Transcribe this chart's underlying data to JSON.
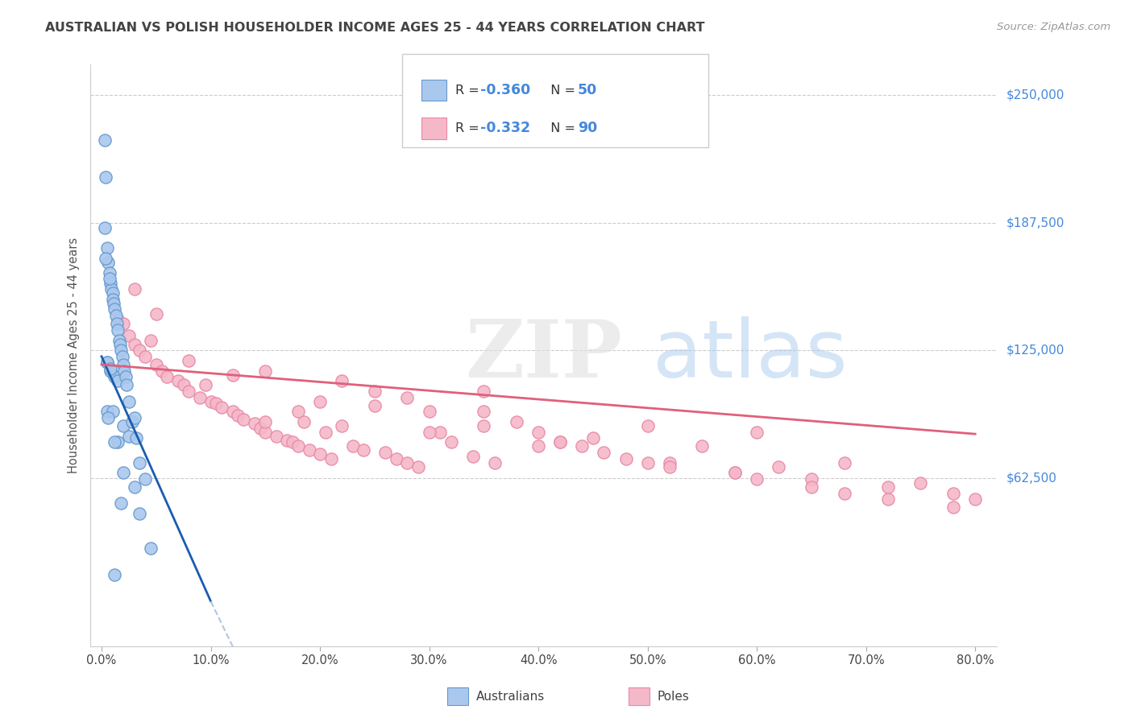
{
  "title": "AUSTRALIAN VS POLISH HOUSEHOLDER INCOME AGES 25 - 44 YEARS CORRELATION CHART",
  "source": "Source: ZipAtlas.com",
  "ylabel": "Householder Income Ages 25 - 44 years",
  "aus_color": "#aac8ee",
  "pole_color": "#f5b8c8",
  "aus_edge_color": "#6699cc",
  "pole_edge_color": "#e888a8",
  "trend_aus_color": "#1a5cb0",
  "trend_pole_color": "#e0607a",
  "trend_aus_dashed_color": "#b0c8e0",
  "background_color": "#ffffff",
  "grid_color": "#cccccc",
  "title_color": "#444444",
  "axis_label_color": "#555555",
  "ytick_label_color": "#4488dd",
  "source_color": "#999999",
  "r_value_color": "#4488dd",
  "n_value_color": "#4488dd",
  "watermark_color_zip": "#dddddd",
  "watermark_color_atlas": "#aaccee",
  "aus_x": [
    0.3,
    0.4,
    0.5,
    0.5,
    0.6,
    0.7,
    0.8,
    0.8,
    0.9,
    1.0,
    1.0,
    1.1,
    1.2,
    1.2,
    1.3,
    1.4,
    1.5,
    1.5,
    1.6,
    1.7,
    1.8,
    1.9,
    2.0,
    2.0,
    2.1,
    2.2,
    2.3,
    2.5,
    2.5,
    2.8,
    3.0,
    3.2,
    3.5,
    4.0,
    0.5,
    0.7,
    1.0,
    1.5,
    2.0,
    3.0,
    0.3,
    0.5,
    0.8,
    1.2,
    1.8,
    0.4,
    0.6,
    3.5,
    4.5,
    1.2
  ],
  "aus_y": [
    228000,
    210000,
    175000,
    119000,
    168000,
    163000,
    158000,
    115000,
    155000,
    153000,
    150000,
    148000,
    145000,
    112000,
    142000,
    138000,
    135000,
    110000,
    130000,
    128000,
    125000,
    122000,
    118000,
    88000,
    115000,
    112000,
    108000,
    100000,
    83000,
    90000,
    92000,
    82000,
    70000,
    62000,
    95000,
    160000,
    95000,
    80000,
    65000,
    58000,
    185000,
    119000,
    116000,
    80000,
    50000,
    170000,
    92000,
    45000,
    28000,
    15000
  ],
  "pole_x": [
    1.5,
    2.0,
    2.5,
    3.0,
    3.5,
    4.0,
    5.0,
    5.5,
    6.0,
    7.0,
    7.5,
    8.0,
    9.0,
    10.0,
    10.5,
    11.0,
    12.0,
    12.5,
    13.0,
    14.0,
    14.5,
    15.0,
    16.0,
    17.0,
    17.5,
    18.0,
    18.5,
    19.0,
    20.0,
    20.5,
    21.0,
    22.0,
    23.0,
    24.0,
    25.0,
    26.0,
    27.0,
    28.0,
    29.0,
    30.0,
    31.0,
    32.0,
    34.0,
    35.0,
    36.0,
    38.0,
    40.0,
    42.0,
    44.0,
    46.0,
    48.0,
    50.0,
    52.0,
    55.0,
    58.0,
    60.0,
    62.0,
    65.0,
    68.0,
    72.0,
    75.0,
    78.0,
    80.0,
    3.0,
    5.0,
    8.0,
    12.0,
    18.0,
    22.0,
    28.0,
    35.0,
    42.0,
    50.0,
    58.0,
    65.0,
    72.0,
    78.0,
    4.5,
    9.5,
    15.0,
    20.0,
    30.0,
    40.0,
    52.0,
    60.0,
    68.0,
    15.0,
    25.0,
    35.0,
    45.0
  ],
  "pole_y": [
    140000,
    138000,
    132000,
    128000,
    125000,
    122000,
    118000,
    115000,
    112000,
    110000,
    108000,
    105000,
    102000,
    100000,
    99000,
    97000,
    95000,
    93000,
    91000,
    89000,
    87000,
    85000,
    83000,
    81000,
    80000,
    78000,
    90000,
    76000,
    74000,
    85000,
    72000,
    88000,
    78000,
    76000,
    98000,
    75000,
    72000,
    70000,
    68000,
    95000,
    85000,
    80000,
    73000,
    105000,
    70000,
    90000,
    85000,
    80000,
    78000,
    75000,
    72000,
    88000,
    70000,
    78000,
    65000,
    85000,
    68000,
    62000,
    70000,
    58000,
    60000,
    55000,
    52000,
    155000,
    143000,
    120000,
    113000,
    95000,
    110000,
    102000,
    88000,
    80000,
    70000,
    65000,
    58000,
    52000,
    48000,
    130000,
    108000,
    90000,
    100000,
    85000,
    78000,
    68000,
    62000,
    55000,
    115000,
    105000,
    95000,
    82000
  ]
}
